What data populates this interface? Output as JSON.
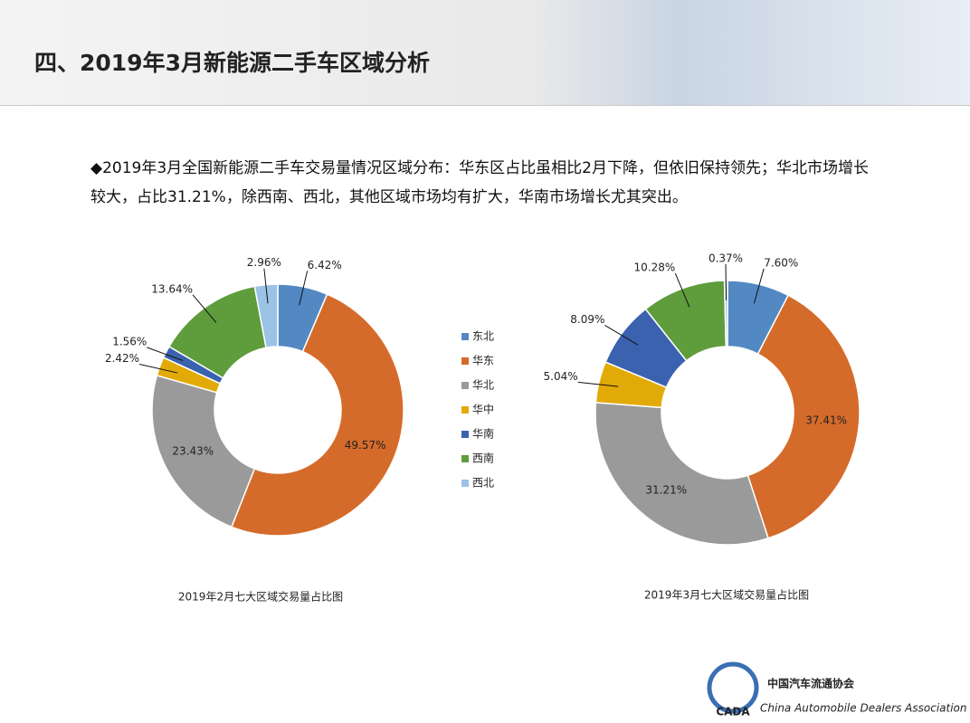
{
  "header": {
    "title": "四、2019年3月新能源二手车区域分析"
  },
  "summary": "◆2019年3月全国新能源二手车交易量情况区域分布：华东区占比虽相比2月下降，但依旧保持领先；华北市场增长较大，占比31.21%，除西南、西北，其他区域市场均有扩大，华南市场增长尤其突出。",
  "logo": {
    "name": "中国汽车流通协会",
    "english": "China Automobile Dealers Association",
    "abbr": "CADA"
  },
  "chart_data": [
    {
      "type": "donut",
      "title": "2019年2月七大区域交易量占比图",
      "categories": [
        "东北",
        "华东",
        "华北",
        "华中",
        "华南",
        "西南",
        "西北"
      ],
      "values": [
        6.42,
        49.57,
        23.43,
        2.42,
        1.56,
        13.64,
        2.96
      ],
      "value_labels": [
        "6.42%",
        "49.57%",
        "23.43%",
        "2.42%",
        "1.56%",
        "13.64%",
        "2.96%"
      ],
      "colors": [
        "#5289c3",
        "#d56b2a",
        "#9a9a9a",
        "#e2aa06",
        "#3a62ae",
        "#5f9c3c",
        "#9cc2e6"
      ],
      "legend": "right"
    },
    {
      "type": "donut",
      "title": "2019年3月七大区域交易量占比图",
      "categories": [
        "东北",
        "华东",
        "华北",
        "华中",
        "华南",
        "西南",
        "西北"
      ],
      "values": [
        7.6,
        37.41,
        31.21,
        5.04,
        8.09,
        10.28,
        0.37
      ],
      "value_labels": [
        "7.60%",
        "37.41%",
        "31.21%",
        "5.04%",
        "8.09%",
        "10.28%",
        "0.37%"
      ],
      "colors": [
        "#5289c3",
        "#d56b2a",
        "#9a9a9a",
        "#e2aa06",
        "#3a62ae",
        "#5f9c3c",
        "#9cc2e6"
      ]
    }
  ]
}
